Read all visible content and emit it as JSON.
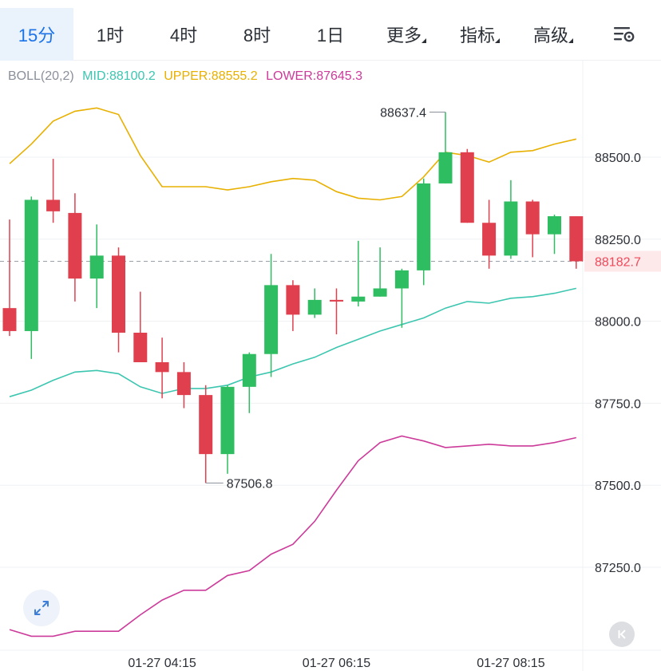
{
  "tabs": [
    {
      "label": "15分",
      "active": true
    },
    {
      "label": "1时",
      "active": false
    },
    {
      "label": "4时",
      "active": false
    },
    {
      "label": "8时",
      "active": false
    },
    {
      "label": "1日",
      "active": false
    },
    {
      "label": "更多",
      "active": false,
      "dropdown": true
    },
    {
      "label": "指标",
      "active": false,
      "dropdown": true
    },
    {
      "label": "高级",
      "active": false,
      "dropdown": true
    }
  ],
  "settings_icon": "chart-settings-icon",
  "indicator": {
    "name": "BOLL(20,2)",
    "mid": "MID:88100.2",
    "upper": "UPPER:88555.2",
    "lower": "LOWER:87645.3"
  },
  "colors": {
    "up": "#2ebd61",
    "down": "#e0404e",
    "mid": "#3cc6b0",
    "upper": "#e8b000",
    "lower": "#cc3b9a",
    "accent": "#1a73e8",
    "current_price": "#f04a5a"
  },
  "chart_data": {
    "type": "candlestick",
    "y_ticks": [
      "88500.0",
      "88250.0",
      "88000.0",
      "87750.0",
      "87500.0",
      "87250.0"
    ],
    "x_ticks": [
      {
        "label": "01-27 04:15",
        "index": 7
      },
      {
        "label": "01-27 06:15",
        "index": 15
      },
      {
        "label": "01-27 08:15",
        "index": 23
      }
    ],
    "ylim": [
      87050,
      88780
    ],
    "current_price": 88182.7,
    "current_price_label": "88182.7",
    "max_label": "88637.4",
    "min_label": "87506.8",
    "max_value": 88637.4,
    "min_value": 87506.8,
    "max_index": 20,
    "min_index": 9,
    "candles": [
      {
        "o": 88040,
        "h": 88310,
        "l": 87955,
        "c": 87970
      },
      {
        "o": 87970,
        "h": 88380,
        "l": 87885,
        "c": 88370
      },
      {
        "o": 88370,
        "h": 88495,
        "l": 88300,
        "c": 88335
      },
      {
        "o": 88330,
        "h": 88390,
        "l": 88060,
        "c": 88130
      },
      {
        "o": 88130,
        "h": 88295,
        "l": 88040,
        "c": 88200
      },
      {
        "o": 88200,
        "h": 88225,
        "l": 87905,
        "c": 87965
      },
      {
        "o": 87965,
        "h": 88090,
        "l": 87875,
        "c": 87875
      },
      {
        "o": 87875,
        "h": 87950,
        "l": 87765,
        "c": 87845
      },
      {
        "o": 87845,
        "h": 87875,
        "l": 87735,
        "c": 87775
      },
      {
        "o": 87775,
        "h": 87805,
        "l": 87506.8,
        "c": 87595
      },
      {
        "o": 87595,
        "h": 87805,
        "l": 87535,
        "c": 87800
      },
      {
        "o": 87800,
        "h": 87905,
        "l": 87720,
        "c": 87900
      },
      {
        "o": 87900,
        "h": 88205,
        "l": 87830,
        "c": 88110
      },
      {
        "o": 88110,
        "h": 88125,
        "l": 87970,
        "c": 88020
      },
      {
        "o": 88020,
        "h": 88100,
        "l": 88010,
        "c": 88065
      },
      {
        "o": 88065,
        "h": 88100,
        "l": 87960,
        "c": 88060
      },
      {
        "o": 88060,
        "h": 88245,
        "l": 88045,
        "c": 88075
      },
      {
        "o": 88075,
        "h": 88225,
        "l": 88075,
        "c": 88100
      },
      {
        "o": 88100,
        "h": 88160,
        "l": 87980,
        "c": 88155
      },
      {
        "o": 88155,
        "h": 88435,
        "l": 88110,
        "c": 88420
      },
      {
        "o": 88420,
        "h": 88637.4,
        "l": 88420,
        "c": 88515
      },
      {
        "o": 88515,
        "h": 88525,
        "l": 88300,
        "c": 88300
      },
      {
        "o": 88300,
        "h": 88370,
        "l": 88160,
        "c": 88200
      },
      {
        "o": 88200,
        "h": 88430,
        "l": 88190,
        "c": 88365
      },
      {
        "o": 88365,
        "h": 88370,
        "l": 88195,
        "c": 88265
      },
      {
        "o": 88265,
        "h": 88325,
        "l": 88205,
        "c": 88320
      },
      {
        "o": 88320,
        "h": 88320,
        "l": 88160,
        "c": 88182.7
      }
    ],
    "series": [
      {
        "name": "UPPER",
        "values": [
          88480,
          88540,
          88610,
          88640,
          88650,
          88630,
          88505,
          88410,
          88410,
          88410,
          88400,
          88410,
          88425,
          88435,
          88430,
          88395,
          88375,
          88370,
          88380,
          88440,
          88515,
          88505,
          88485,
          88515,
          88520,
          88540,
          88555.2
        ]
      },
      {
        "name": "MID",
        "values": [
          87770,
          87790,
          87820,
          87845,
          87850,
          87840,
          87800,
          87780,
          87795,
          87795,
          87805,
          87830,
          87845,
          87870,
          87890,
          87920,
          87945,
          87970,
          87990,
          88010,
          88040,
          88060,
          88055,
          88070,
          88075,
          88085,
          88100.2
        ]
      },
      {
        "name": "LOWER",
        "values": [
          87060,
          87040,
          87040,
          87055,
          87055,
          87055,
          87105,
          87150,
          87180,
          87180,
          87225,
          87240,
          87290,
          87320,
          87390,
          87485,
          87575,
          87630,
          87650,
          87635,
          87615,
          87620,
          87625,
          87620,
          87620,
          87630,
          87645.3
        ]
      }
    ]
  }
}
